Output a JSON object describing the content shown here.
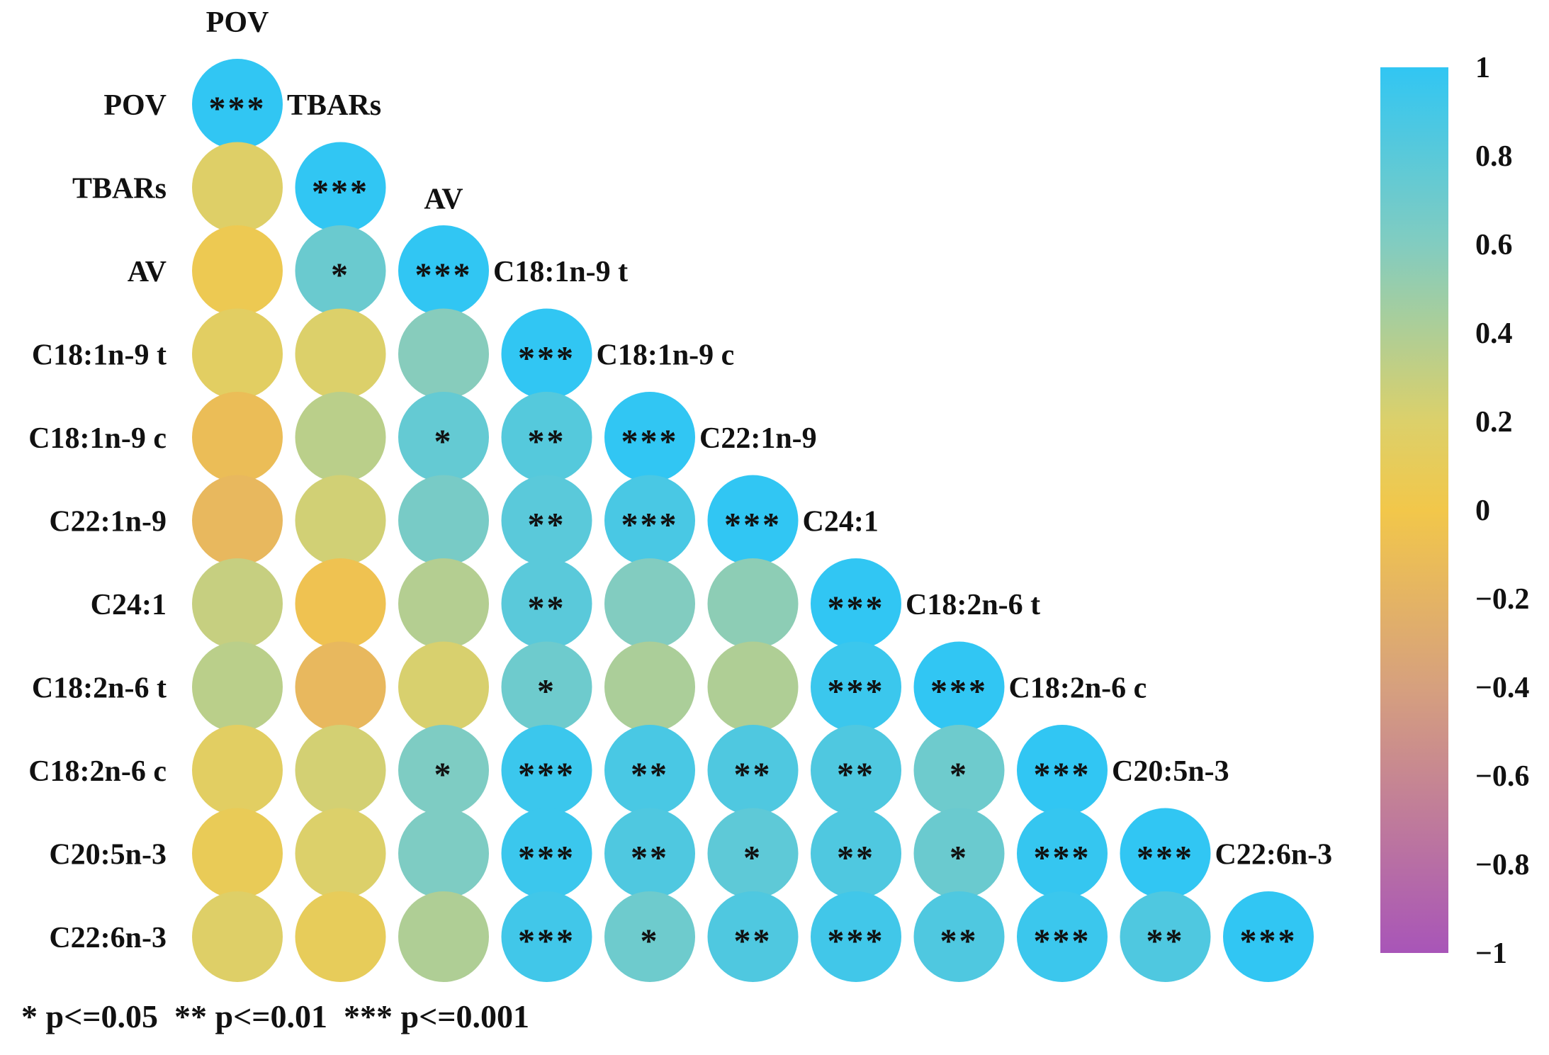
{
  "chart_data": {
    "type": "heatmap",
    "style": "lower-triangular correlation circles",
    "variables": [
      "POV",
      "TBARs",
      "AV",
      "C18:1n-9 t",
      "C18:1n-9 c",
      "C22:1n-9",
      "C24:1",
      "C18:2n-6 t",
      "C18:2n-6 c",
      "C20:5n-3",
      "C22:6n-3"
    ],
    "correlations": [
      [
        1.0
      ],
      [
        0.18,
        1.0
      ],
      [
        0.05,
        0.72,
        1.0
      ],
      [
        0.15,
        0.2,
        0.58,
        1.0
      ],
      [
        -0.1,
        0.35,
        0.75,
        0.82,
        1.0
      ],
      [
        -0.15,
        0.25,
        0.65,
        0.8,
        0.88,
        1.0
      ],
      [
        0.3,
        -0.05,
        0.38,
        0.8,
        0.6,
        0.55,
        1.0
      ],
      [
        0.35,
        -0.15,
        0.22,
        0.7,
        0.42,
        0.4,
        0.95,
        1.0
      ],
      [
        0.15,
        0.24,
        0.62,
        0.95,
        0.88,
        0.85,
        0.85,
        0.7,
        1.0
      ],
      [
        0.08,
        0.2,
        0.62,
        0.95,
        0.85,
        0.78,
        0.85,
        0.72,
        0.98,
        1.0
      ],
      [
        0.18,
        0.1,
        0.4,
        0.92,
        0.7,
        0.85,
        0.92,
        0.85,
        0.95,
        0.85,
        1.0
      ]
    ],
    "significance": [
      [
        "***"
      ],
      [
        "",
        "***"
      ],
      [
        "",
        "*",
        "***"
      ],
      [
        "",
        "",
        "",
        "***"
      ],
      [
        "",
        "",
        "*",
        "**",
        "***"
      ],
      [
        "",
        "",
        "",
        "**",
        "***",
        "***"
      ],
      [
        "",
        "",
        "",
        "**",
        "",
        "",
        "***"
      ],
      [
        "",
        "",
        "",
        "*",
        "",
        "",
        "***",
        "***"
      ],
      [
        "",
        "",
        "*",
        "***",
        "**",
        "**",
        "**",
        "*",
        "***"
      ],
      [
        "",
        "",
        "",
        "***",
        "**",
        "*",
        "**",
        "*",
        "***",
        "***"
      ],
      [
        "",
        "",
        "",
        "***",
        "*",
        "**",
        "***",
        "**",
        "***",
        "**",
        "***"
      ]
    ],
    "colorbar": {
      "range": [
        -1,
        1
      ],
      "ticks": [
        "1",
        "0.8",
        "0.6",
        "0.4",
        "0.2",
        "0",
        "−0.2",
        "−0.4",
        "−0.6",
        "−0.8",
        "−1"
      ],
      "stops": [
        {
          "v": 1.0,
          "color": "#31c6f3"
        },
        {
          "v": 0.6,
          "color": "#82ccc0"
        },
        {
          "v": 0.2,
          "color": "#dcd06a"
        },
        {
          "v": 0.0,
          "color": "#f2c74a"
        },
        {
          "v": -0.4,
          "color": "#d6a07e"
        },
        {
          "v": -1.0,
          "color": "#a855b8"
        }
      ]
    },
    "legend_text": "* p<=0.05  ** p<=0.01  *** p<=0.001"
  }
}
